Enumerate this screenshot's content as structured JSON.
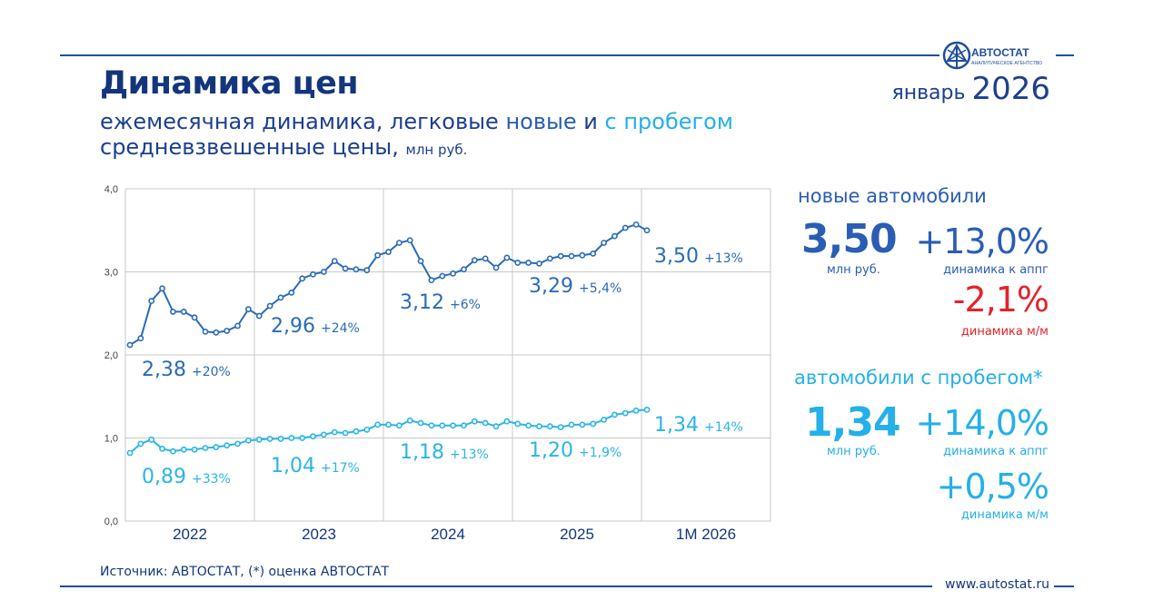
{
  "header": {
    "title": "Динамика цен",
    "subtitle_part1": "ежемесячная динамика, легковые ",
    "subtitle_new": "новые",
    "subtitle_and": " и ",
    "subtitle_used": "с пробегом",
    "subtitle2": "средневзвешенные цены, ",
    "subtitle2_unit": "млн руб.",
    "period_month": "январь ",
    "period_year": "2026"
  },
  "logo": {
    "name": "АВТОСТАТ",
    "tagline": "АНАЛИТИЧЕСКОЕ АГЕНТСТВО"
  },
  "footer": {
    "source": "Источник: АВТОСТАТ, (*) оценка АВТОСТАТ",
    "site": "www.autostat.ru"
  },
  "colors": {
    "new": "#2a6bb8",
    "used": "#29b5e8",
    "red": "#e3232b",
    "navy": "#13357c"
  },
  "panel": {
    "new": {
      "heading": "новые автомобили",
      "price": "3,50",
      "price_unit": "млн руб.",
      "yoy": "+13,0%",
      "yoy_caption": "динамика к аппг",
      "mom": "-2,1%",
      "mom_caption": "динамика м/м"
    },
    "used": {
      "heading": "автомобили с пробегом*",
      "price": "1,34",
      "price_unit": "млн руб.",
      "yoy": "+14,0%",
      "yoy_caption": "динамика к аппг",
      "mom": "+0,5%",
      "mom_caption": "динамика м/м"
    }
  },
  "chart_data": {
    "type": "line",
    "title": "",
    "xlabel": "",
    "ylabel": "",
    "ylim": [
      0,
      4
    ],
    "yticks": [
      "0,0",
      "1,0",
      "2,0",
      "3,0",
      "4,0"
    ],
    "grid": true,
    "periods": [
      "2022",
      "2023",
      "2024",
      "2025",
      "1M 2026"
    ],
    "series": [
      {
        "id": "new",
        "values": [
          2.12,
          2.2,
          2.65,
          2.8,
          2.52,
          2.52,
          2.45,
          2.28,
          2.27,
          2.29,
          2.35,
          2.55,
          2.47,
          2.59,
          2.69,
          2.75,
          2.92,
          2.97,
          3.0,
          3.13,
          3.04,
          3.03,
          3.02,
          3.2,
          3.24,
          3.35,
          3.38,
          3.13,
          2.9,
          2.95,
          2.98,
          3.03,
          3.14,
          3.16,
          3.05,
          3.17,
          3.11,
          3.11,
          3.1,
          3.16,
          3.19,
          3.19,
          3.2,
          3.22,
          3.35,
          3.43,
          3.53,
          3.57,
          3.5
        ],
        "labels": [
          {
            "value": "2,38",
            "change": "+20%"
          },
          {
            "value": "2,96",
            "change": "+24%"
          },
          {
            "value": "3,12",
            "change": "+6%"
          },
          {
            "value": "3,29",
            "change": "+5,4%"
          },
          {
            "value": "3,50",
            "change": "+13%"
          }
        ]
      },
      {
        "id": "used",
        "values": [
          0.82,
          0.93,
          0.98,
          0.87,
          0.84,
          0.86,
          0.86,
          0.88,
          0.89,
          0.91,
          0.93,
          0.97,
          0.98,
          0.99,
          0.99,
          1.0,
          1.0,
          1.02,
          1.04,
          1.07,
          1.06,
          1.08,
          1.1,
          1.16,
          1.16,
          1.15,
          1.21,
          1.18,
          1.15,
          1.15,
          1.15,
          1.15,
          1.2,
          1.18,
          1.14,
          1.2,
          1.17,
          1.15,
          1.14,
          1.14,
          1.13,
          1.16,
          1.16,
          1.17,
          1.22,
          1.28,
          1.3,
          1.33,
          1.34
        ],
        "labels": [
          {
            "value": "0,89",
            "change": "+33%"
          },
          {
            "value": "1,04",
            "change": "+17%"
          },
          {
            "value": "1,18",
            "change": "+13%"
          },
          {
            "value": "1,20",
            "change": "+1,9%"
          },
          {
            "value": "1,34",
            "change": "+14%"
          }
        ]
      }
    ]
  }
}
